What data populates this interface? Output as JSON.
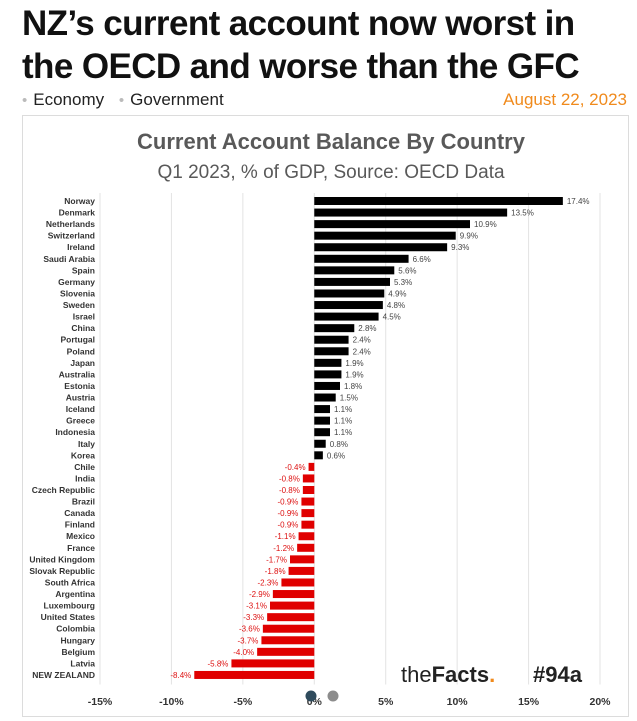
{
  "article": {
    "headline": "NZ’s current account now worst in the OECD and worse than the GFC",
    "categories": [
      "Economy",
      "Government"
    ],
    "date": "August 22, 2023"
  },
  "branding": {
    "name_the": "the",
    "name_facts": "Facts",
    "name_dot": ".",
    "tag": "#94a"
  },
  "colors": {
    "positive": "#000000",
    "negative": "#e00000",
    "accent": "#f08a1c"
  },
  "chart_data": {
    "type": "bar",
    "orientation": "horizontal",
    "title": "Current Account Balance By Country",
    "subtitle": "Q1 2023, % of GDP, Source: OECD Data",
    "xlim": [
      -15,
      20
    ],
    "xticks": [
      -15,
      -10,
      -5,
      0,
      5,
      10,
      15,
      20
    ],
    "xtick_labels": [
      "-15%",
      "-10%",
      "-5%",
      "0%",
      "5%",
      "10%",
      "15%",
      "20%"
    ],
    "grid": true,
    "categories": [
      "Norway",
      "Denmark",
      "Netherlands",
      "Switzerland",
      "Ireland",
      "Saudi Arabia",
      "Spain",
      "Germany",
      "Slovenia",
      "Sweden",
      "Israel",
      "China",
      "Portugal",
      "Poland",
      "Japan",
      "Australia",
      "Estonia",
      "Austria",
      "Iceland",
      "Greece",
      "Indonesia",
      "Italy",
      "Korea",
      "Chile",
      "India",
      "Czech Republic",
      "Brazil",
      "Canada",
      "Finland",
      "Mexico",
      "France",
      "United Kingdom",
      "Slovak Republic",
      "South Africa",
      "Argentina",
      "Luxembourg",
      "United States",
      "Colombia",
      "Hungary",
      "Belgium",
      "Latvia",
      "NEW ZEALAND"
    ],
    "values": [
      17.4,
      13.5,
      10.9,
      9.9,
      9.3,
      6.6,
      5.6,
      5.3,
      4.9,
      4.8,
      4.5,
      2.8,
      2.4,
      2.4,
      1.9,
      1.9,
      1.8,
      1.5,
      1.1,
      1.1,
      1.1,
      0.8,
      0.6,
      -0.4,
      -0.8,
      -0.8,
      -0.9,
      -0.9,
      -0.9,
      -1.1,
      -1.2,
      -1.7,
      -1.8,
      -2.3,
      -2.9,
      -3.1,
      -3.3,
      -3.6,
      -3.7,
      -4.0,
      -5.8,
      -8.4
    ],
    "value_labels": [
      "17.4%",
      "13.5%",
      "10.9%",
      "9.9%",
      "9.3%",
      "6.6%",
      "5.6%",
      "5.3%",
      "4.9%",
      "4.8%",
      "4.5%",
      "2.8%",
      "2.4%",
      "2.4%",
      "1.9%",
      "1.9%",
      "1.8%",
      "1.5%",
      "1.1%",
      "1.1%",
      "1.1%",
      "0.8%",
      "0.6%",
      "-0.4%",
      "-0.8%",
      "-0.8%",
      "-0.9%",
      "-0.9%",
      "-0.9%",
      "-1.1%",
      "-1.2%",
      "-1.7%",
      "-1.8%",
      "-2.3%",
      "-2.9%",
      "-3.1%",
      "-3.3%",
      "-3.6%",
      "-3.7%",
      "-4.0%",
      "-5.8%",
      "-8.4%"
    ]
  }
}
